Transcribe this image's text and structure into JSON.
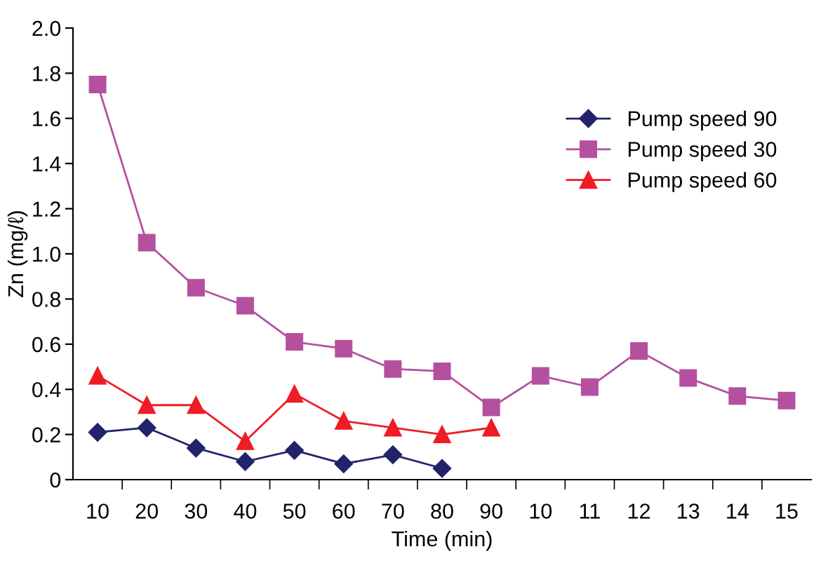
{
  "chart_data": {
    "type": "line",
    "xlabel": "Time (min)",
    "ylabel": "Zn (mg/ℓ)",
    "categories": [
      "10",
      "20",
      "30",
      "40",
      "50",
      "60",
      "70",
      "80",
      "90",
      "10",
      "11",
      "12",
      "13",
      "14",
      "15"
    ],
    "series": [
      {
        "name": "Pump speed 90",
        "color": "#22236b",
        "marker": "diamond",
        "values": [
          0.21,
          0.23,
          0.14,
          0.08,
          0.13,
          0.07,
          0.11,
          0.05,
          null,
          null,
          null,
          null,
          null,
          null,
          null
        ]
      },
      {
        "name": "Pump speed 30",
        "color": "#b5509f",
        "marker": "square",
        "values": [
          1.75,
          1.05,
          0.85,
          0.77,
          0.61,
          0.58,
          0.49,
          0.48,
          0.32,
          0.46,
          0.41,
          0.57,
          0.45,
          0.37,
          0.35
        ]
      },
      {
        "name": "Pump speed 60",
        "color": "#ee1c25",
        "marker": "triangle",
        "values": [
          0.46,
          0.33,
          0.33,
          0.17,
          0.38,
          0.26,
          0.23,
          0.2,
          0.23,
          null,
          null,
          null,
          null,
          null,
          null
        ]
      }
    ],
    "ylim": [
      0,
      2.0
    ],
    "yticks": [
      {
        "value": 0,
        "label": "0"
      },
      {
        "value": 0.2,
        "label": "0.2"
      },
      {
        "value": 0.4,
        "label": "0.4"
      },
      {
        "value": 0.6,
        "label": "0.6"
      },
      {
        "value": 0.8,
        "label": "0.8"
      },
      {
        "value": 1.0,
        "label": "1.0"
      },
      {
        "value": 1.2,
        "label": "1.2"
      },
      {
        "value": 1.4,
        "label": "1.4"
      },
      {
        "value": 1.6,
        "label": "1.6"
      },
      {
        "value": 1.8,
        "label": "1.8"
      },
      {
        "value": 2.0,
        "label": "2.0"
      }
    ],
    "grid": false,
    "legend": "top right",
    "line_style": "solid"
  }
}
